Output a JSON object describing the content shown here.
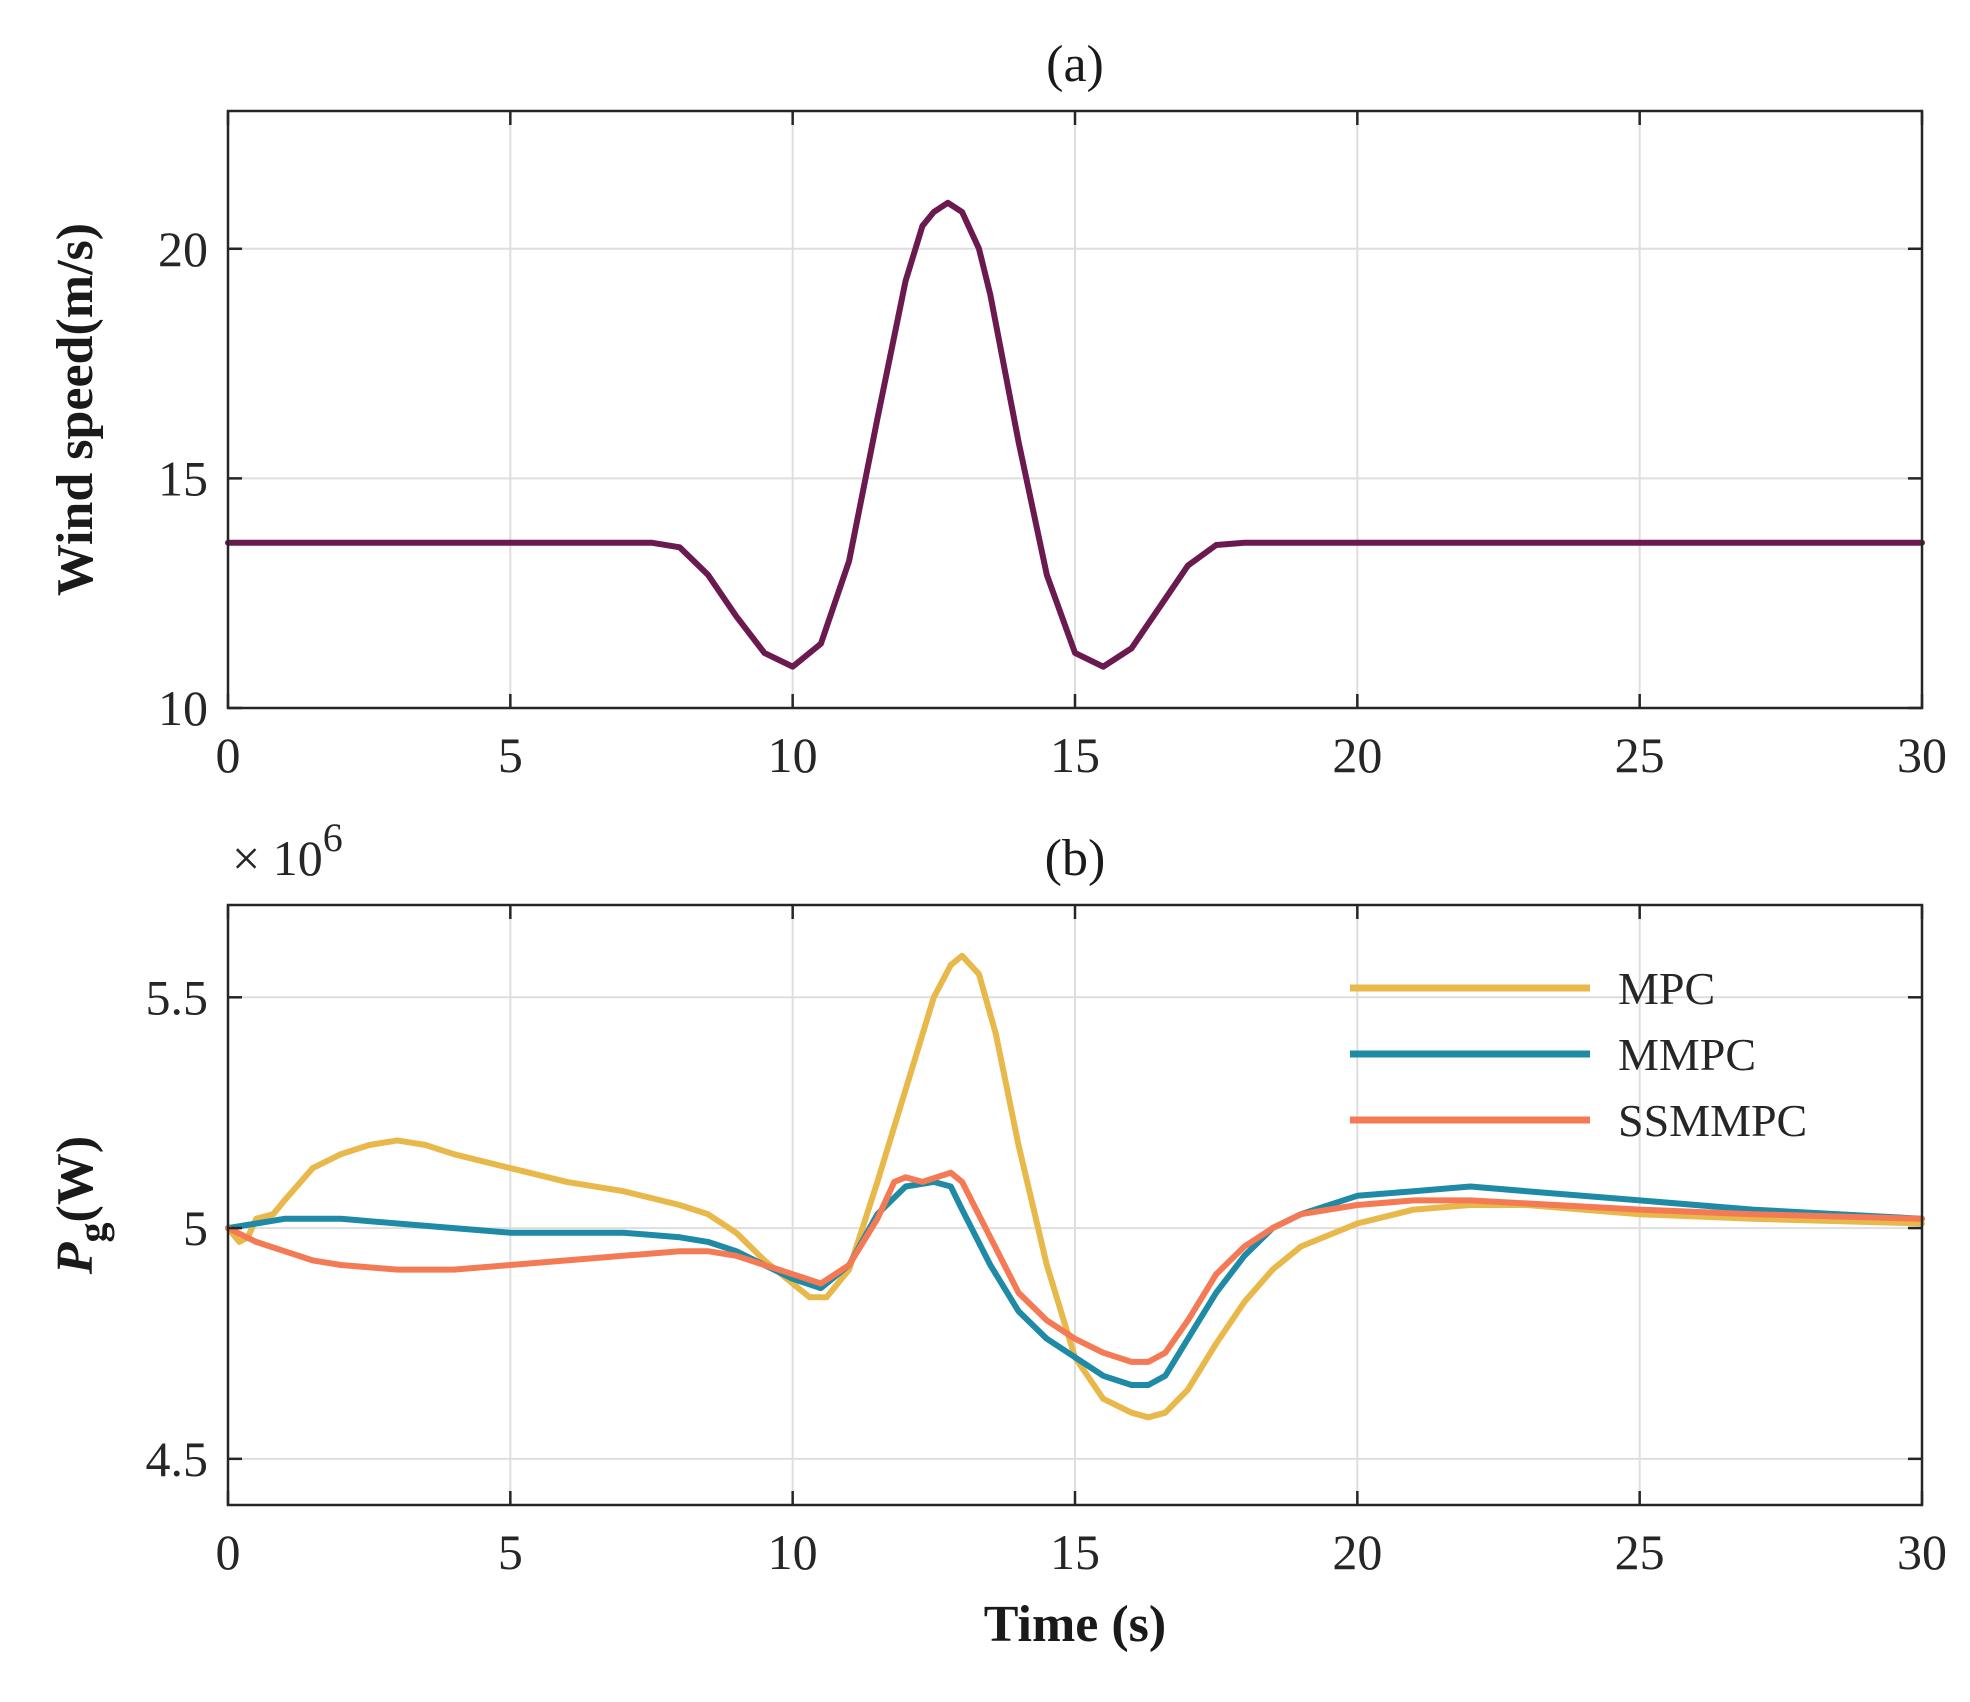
{
  "chart_data": [
    {
      "id": "a",
      "type": "line",
      "title": "(a)",
      "xlabel": "",
      "ylabel": "Wind speed(m/s)",
      "xlim": [
        0,
        30
      ],
      "ylim": [
        10,
        23
      ],
      "xticks": [
        0,
        5,
        10,
        15,
        20,
        25,
        30
      ],
      "yticks": [
        10,
        15,
        20
      ],
      "grid": true,
      "series": [
        {
          "name": "Wind speed",
          "color": "#6b1a4f",
          "x": [
            0,
            7.5,
            8,
            8.5,
            9,
            9.5,
            10,
            10.5,
            11,
            11.5,
            12,
            12.3,
            12.5,
            12.75,
            13,
            13.3,
            13.5,
            14,
            14.5,
            15,
            15.5,
            16,
            16.5,
            17,
            17.5,
            18,
            30
          ],
          "y": [
            13.6,
            13.6,
            13.5,
            12.9,
            12.0,
            11.2,
            10.9,
            11.4,
            13.2,
            16.3,
            19.3,
            20.5,
            20.8,
            21.0,
            20.8,
            20.0,
            19.0,
            15.8,
            12.9,
            11.2,
            10.9,
            11.3,
            12.2,
            13.1,
            13.55,
            13.6,
            13.6
          ]
        }
      ]
    },
    {
      "id": "b",
      "type": "line",
      "title": "(b)",
      "xlabel": "Time (s)",
      "ylabel": "Pg(W)",
      "ylabel_main": "P",
      "ylabel_sub": "g",
      "ylabel_unit": "(W)",
      "exponent_label": "× 10",
      "exponent_power": "6",
      "xlim": [
        0,
        30
      ],
      "ylim": [
        4.4,
        5.7
      ],
      "xticks": [
        0,
        5,
        10,
        15,
        20,
        25,
        30
      ],
      "yticks": [
        4.5,
        5,
        5.5
      ],
      "ytick_labels": [
        "4.5",
        "5",
        "5.5"
      ],
      "grid": true,
      "legend_position": "top-right",
      "series": [
        {
          "name": "MPC",
          "color": "#e8b84a",
          "x": [
            0,
            0.2,
            0.35,
            0.5,
            0.8,
            1,
            1.5,
            2,
            2.5,
            3,
            3.5,
            4,
            5,
            6,
            7,
            8,
            8.5,
            9,
            9.5,
            10,
            10.3,
            10.6,
            11,
            11.5,
            12,
            12.5,
            12.8,
            13,
            13.3,
            13.6,
            14,
            14.5,
            15,
            15.5,
            16,
            16.3,
            16.6,
            17,
            17.5,
            18,
            18.5,
            19,
            20,
            21,
            22,
            23,
            25,
            27,
            30
          ],
          "y": [
            5.0,
            4.97,
            4.98,
            5.02,
            5.03,
            5.06,
            5.13,
            5.16,
            5.18,
            5.19,
            5.18,
            5.16,
            5.13,
            5.1,
            5.08,
            5.05,
            5.03,
            4.99,
            4.93,
            4.88,
            4.85,
            4.85,
            4.91,
            5.1,
            5.3,
            5.5,
            5.57,
            5.59,
            5.55,
            5.42,
            5.18,
            4.92,
            4.72,
            4.63,
            4.6,
            4.59,
            4.6,
            4.65,
            4.75,
            4.84,
            4.91,
            4.96,
            5.01,
            5.04,
            5.05,
            5.05,
            5.03,
            5.02,
            5.01
          ]
        },
        {
          "name": "MMPC",
          "color": "#1f8aa6",
          "x": [
            0,
            0.5,
            1,
            1.5,
            2,
            3,
            4,
            5,
            6,
            7,
            8,
            8.5,
            9,
            9.5,
            10,
            10.5,
            11,
            11.5,
            12,
            12.5,
            12.8,
            13,
            13.5,
            14,
            14.5,
            15,
            15.5,
            16,
            16.3,
            16.6,
            17,
            17.5,
            18,
            18.5,
            19,
            20,
            21,
            22,
            23,
            25,
            27,
            30
          ],
          "y": [
            5.0,
            5.01,
            5.02,
            5.02,
            5.02,
            5.01,
            5.0,
            4.99,
            4.99,
            4.99,
            4.98,
            4.97,
            4.95,
            4.92,
            4.89,
            4.87,
            4.92,
            5.03,
            5.09,
            5.1,
            5.09,
            5.04,
            4.92,
            4.82,
            4.76,
            4.72,
            4.68,
            4.66,
            4.66,
            4.68,
            4.76,
            4.86,
            4.94,
            5.0,
            5.03,
            5.07,
            5.08,
            5.09,
            5.08,
            5.06,
            5.04,
            5.02
          ]
        },
        {
          "name": "SSMMPC",
          "color": "#f47a55",
          "x": [
            0,
            0.5,
            1,
            1.5,
            2,
            3,
            3.5,
            4,
            5,
            6,
            7,
            8,
            8.5,
            9,
            9.5,
            10,
            10.5,
            11,
            11.5,
            11.8,
            12,
            12.3,
            12.8,
            13,
            13.5,
            14,
            14.5,
            15,
            15.5,
            16,
            16.3,
            16.6,
            17,
            17.5,
            18,
            18.5,
            19,
            20,
            21,
            22,
            25,
            27,
            30
          ],
          "y": [
            5.0,
            4.97,
            4.95,
            4.93,
            4.92,
            4.91,
            4.91,
            4.91,
            4.92,
            4.93,
            4.94,
            4.95,
            4.95,
            4.94,
            4.92,
            4.9,
            4.88,
            4.92,
            5.02,
            5.1,
            5.11,
            5.1,
            5.12,
            5.1,
            4.98,
            4.86,
            4.8,
            4.76,
            4.73,
            4.71,
            4.71,
            4.73,
            4.8,
            4.9,
            4.96,
            5.0,
            5.03,
            5.05,
            5.06,
            5.06,
            5.04,
            5.03,
            5.02
          ]
        }
      ]
    }
  ]
}
